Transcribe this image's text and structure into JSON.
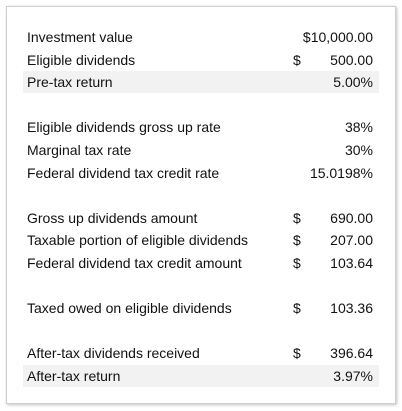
{
  "groups": [
    {
      "rows": [
        {
          "label": "Investment value",
          "value": "$10,000.00"
        },
        {
          "label": "Eligible dividends",
          "symbol": "$",
          "value": "500.00"
        },
        {
          "label": "Pre-tax return",
          "value": "5.00%",
          "shaded": true
        }
      ]
    },
    {
      "rows": [
        {
          "label": "Eligible dividends gross up rate",
          "value": "38%"
        },
        {
          "label": "Marginal tax rate",
          "value": "30%"
        },
        {
          "label": "Federal dividend tax credit rate",
          "value": "15.0198%"
        }
      ]
    },
    {
      "rows": [
        {
          "label": "Gross up dividends amount",
          "symbol": "$",
          "value": "690.00"
        },
        {
          "label": "Taxable portion of eligible dividends",
          "symbol": "$",
          "value": "207.00"
        },
        {
          "label": "Federal dividend tax credit amount",
          "symbol": "$",
          "value": "103.64"
        }
      ]
    },
    {
      "rows": [
        {
          "label": "Taxed owed on eligible dividends",
          "symbol": "$",
          "value": "103.36"
        }
      ]
    },
    {
      "rows": [
        {
          "label": "After-tax dividends received",
          "symbol": "$",
          "value": "396.64"
        },
        {
          "label": "After-tax return",
          "value": "3.97%",
          "shaded": true
        }
      ]
    }
  ]
}
